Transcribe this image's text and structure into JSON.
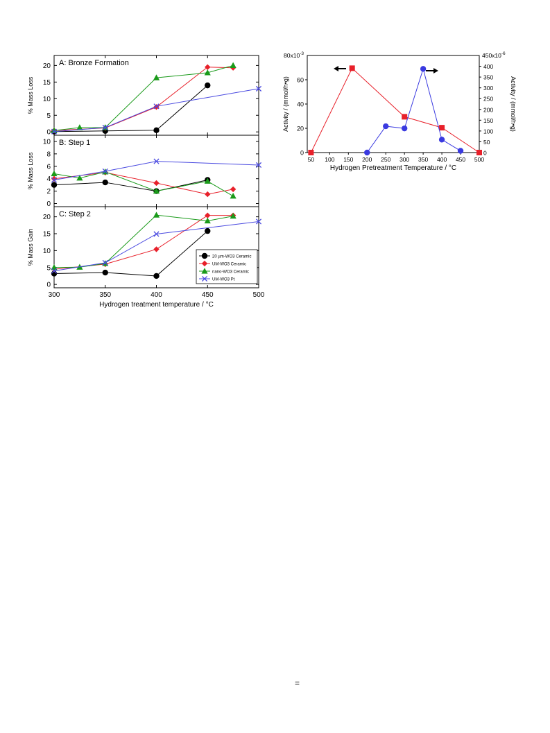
{
  "page": {
    "bottom_mark": "="
  },
  "chart_data": [
    {
      "type": "line",
      "subplots": [
        {
          "title": "A: Bronze Formation",
          "ylabel": "% Mass Loss",
          "ylim": [
            -1,
            23
          ],
          "yticks": [
            0,
            5,
            10,
            15,
            20
          ],
          "series": [
            {
              "name": "20 µm-WO3 Ceramic",
              "color": "#000000",
              "marker": "circle",
              "x": [
                300,
                350,
                400,
                450
              ],
              "y": [
                0.1,
                0.3,
                0.5,
                14
              ]
            },
            {
              "name": "UM-WO3 Ceramic",
              "color": "#e8202a",
              "marker": "diamond",
              "x": [
                300,
                350,
                400,
                450,
                475
              ],
              "y": [
                0.4,
                1.2,
                7.5,
                19.5,
                19.3
              ]
            },
            {
              "name": "nano-WO3 Ceramic",
              "color": "#1a9a1a",
              "marker": "triangle",
              "x": [
                300,
                325,
                350,
                400,
                450,
                475
              ],
              "y": [
                0.4,
                1.3,
                1.3,
                16.3,
                17.8,
                20
              ]
            },
            {
              "name": "UM-WO3 Pt",
              "color": "#4a4ae0",
              "marker": "cross",
              "x": [
                300,
                350,
                400,
                500
              ],
              "y": [
                0.1,
                1.3,
                7.7,
                13
              ]
            }
          ]
        },
        {
          "title": "B: Step 1",
          "ylabel": "% Mass Loss",
          "ylim": [
            -0.5,
            11
          ],
          "yticks": [
            0,
            2,
            4,
            6,
            8,
            10
          ],
          "series": [
            {
              "name": "20 µm-WO3 Ceramic",
              "color": "#000000",
              "marker": "circle",
              "x": [
                300,
                350,
                400,
                450
              ],
              "y": [
                3.0,
                3.4,
                2.0,
                3.8
              ]
            },
            {
              "name": "UM-WO3 Ceramic",
              "color": "#e8202a",
              "marker": "diamond",
              "x": [
                300,
                350,
                400,
                450,
                475
              ],
              "y": [
                4.0,
                5.0,
                3.3,
                1.5,
                2.3
              ]
            },
            {
              "name": "nano-WO3 Ceramic",
              "color": "#1a9a1a",
              "marker": "triangle",
              "x": [
                300,
                325,
                350,
                400,
                450,
                475
              ],
              "y": [
                4.8,
                4.1,
                5.1,
                2.0,
                3.6,
                1.2
              ]
            },
            {
              "name": "UM-WO3 Pt",
              "color": "#4a4ae0",
              "marker": "cross",
              "x": [
                300,
                350,
                400,
                500
              ],
              "y": [
                3.8,
                5.2,
                6.8,
                6.2
              ]
            }
          ]
        },
        {
          "title": "C: Step 2",
          "ylabel": "% Mass Gain",
          "ylim": [
            -1,
            23
          ],
          "yticks": [
            0,
            5,
            10,
            15,
            20
          ],
          "series": [
            {
              "name": "20 µm-WO3 Ceramic",
              "color": "#000000",
              "marker": "circle",
              "x": [
                300,
                350,
                400,
                450
              ],
              "y": [
                3.2,
                3.5,
                2.5,
                15.8
              ]
            },
            {
              "name": "UM-WO3 Ceramic",
              "color": "#e8202a",
              "marker": "diamond",
              "x": [
                300,
                350,
                400,
                450,
                475
              ],
              "y": [
                4.5,
                6.0,
                10.4,
                20.4,
                20.4
              ]
            },
            {
              "name": "nano-WO3 Ceramic",
              "color": "#1a9a1a",
              "marker": "triangle",
              "x": [
                300,
                325,
                350,
                400,
                450,
                475
              ],
              "y": [
                5.0,
                5.1,
                6.2,
                20.5,
                18.8,
                20.2
              ]
            },
            {
              "name": "UM-WO3 Pt",
              "color": "#4a4ae0",
              "marker": "cross",
              "x": [
                300,
                350,
                400,
                500
              ],
              "y": [
                4.0,
                6.4,
                14.9,
                18.6
              ]
            }
          ]
        }
      ],
      "xlabel": "Hydrogen treatment temperature / °C",
      "xlim": [
        300,
        500
      ],
      "xticks": [
        300,
        350,
        400,
        450,
        500
      ],
      "legend": {
        "placement": "bottom-right of panel C",
        "entries": [
          "20 µm-WO3 Ceramic",
          "UM-WO3 Ceramic",
          "nano-WO3 Ceramic",
          "UM-WO3 Pt"
        ]
      }
    },
    {
      "type": "line",
      "xlabel": "Hydrogen Pretreatment Temperature / °C",
      "xlim": [
        40,
        500
      ],
      "xticks": [
        50,
        100,
        150,
        200,
        250,
        300,
        350,
        400,
        450,
        500
      ],
      "left_axis": {
        "label": "Activity / (mmol/h•g)",
        "max_label": "80x10",
        "max_exp": "-3",
        "ylim": [
          0,
          0.08
        ],
        "ticks": [
          0,
          0.02,
          0.04,
          0.06
        ],
        "tick_labels": [
          "0",
          "20",
          "40",
          "60"
        ]
      },
      "right_axis": {
        "label": "Activity / (mmol/h•g)",
        "max_label": "450x10",
        "max_exp": "-6",
        "ylim": [
          0,
          0.00045
        ],
        "ticks": [
          0,
          5e-05,
          0.0001,
          0.00015,
          0.0002,
          0.00025,
          0.0003,
          0.00035,
          0.0004
        ],
        "tick_labels": [
          "0",
          "50",
          "100",
          "150",
          "200",
          "250",
          "300",
          "350",
          "400"
        ]
      },
      "series": [
        {
          "axis": "left",
          "color": "#e8202a",
          "marker": "square",
          "x": [
            50,
            160,
            300,
            400,
            500
          ],
          "y": [
            0.0,
            0.0695,
            0.0295,
            0.0205,
            0.0
          ]
        },
        {
          "axis": "right",
          "color": "#3a3ae0",
          "marker": "circle",
          "x": [
            200,
            250,
            300,
            350,
            400,
            450
          ],
          "y": [
            0.0,
            0.000122,
            0.000112,
            0.000388,
            6e-05,
            8e-06
          ]
        }
      ],
      "annotations": [
        {
          "type": "arrow",
          "direction": "left",
          "points_to": "left axis"
        },
        {
          "type": "arrow",
          "direction": "right",
          "points_to": "right axis"
        }
      ]
    }
  ]
}
